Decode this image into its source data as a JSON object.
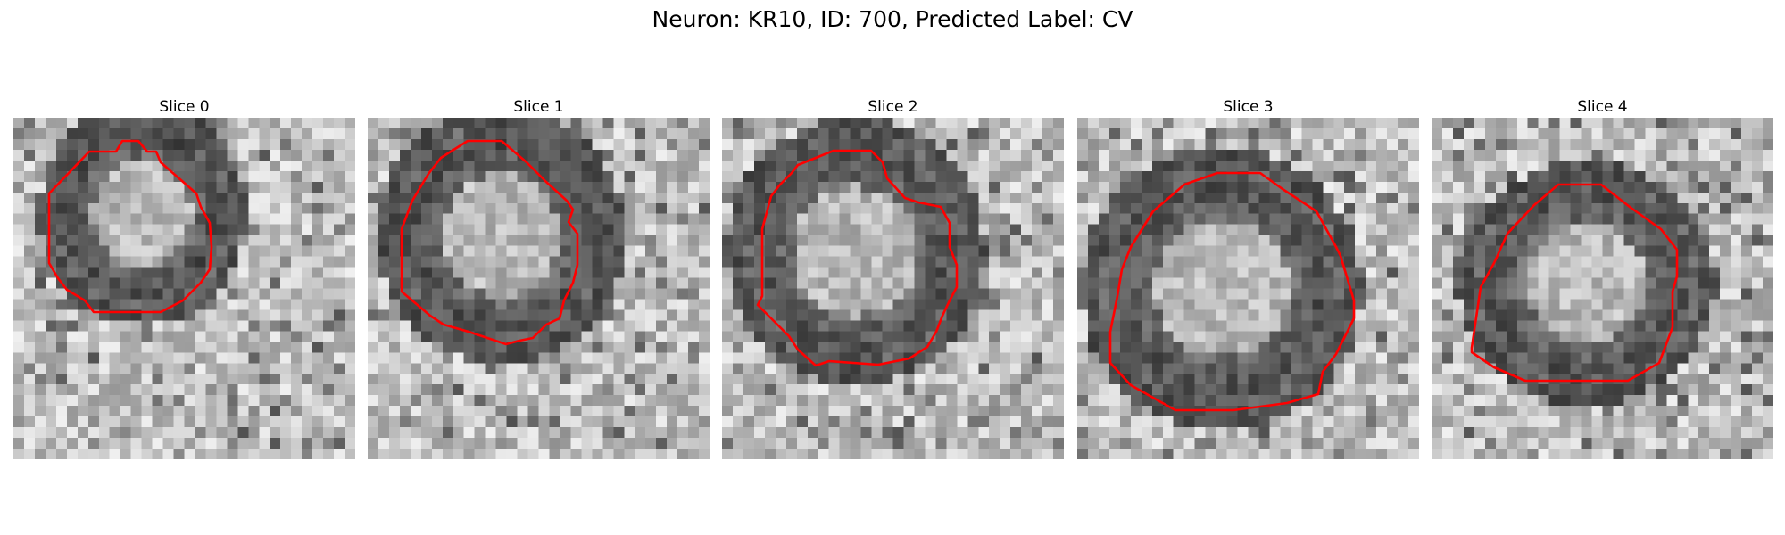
{
  "title": "Neuron: KR10, ID: 700, Predicted Label: CV",
  "contour_color": "#ff0000",
  "colormap": "grayscale",
  "slices": [
    {
      "label": "Slice 0"
    },
    {
      "label": "Slice 1"
    },
    {
      "label": "Slice 2"
    },
    {
      "label": "Slice 3"
    },
    {
      "label": "Slice 4"
    }
  ]
}
